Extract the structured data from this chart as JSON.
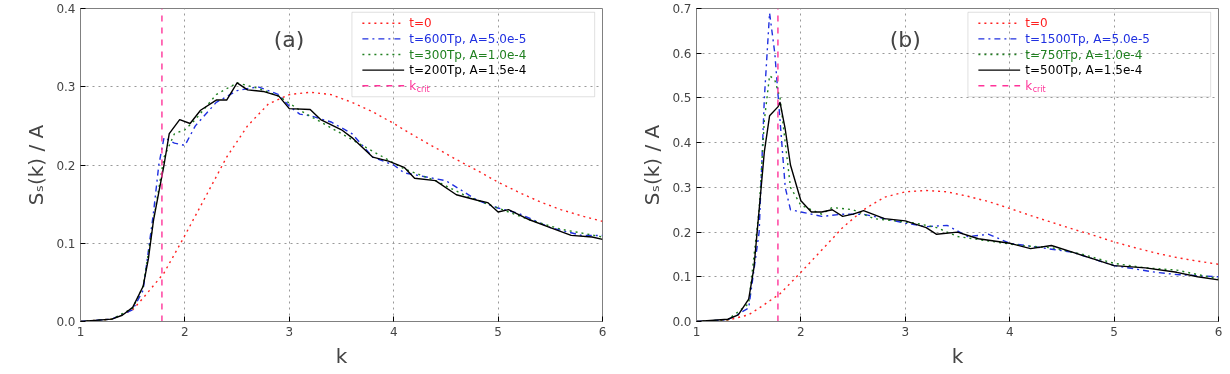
{
  "chart_data": [
    {
      "type": "line",
      "annotations": [
        "(a)"
      ],
      "xlabel": "k",
      "ylabel": "Sₛ(k) / A",
      "xlim": [
        1,
        6
      ],
      "ylim": [
        0,
        0.4
      ],
      "xticks": [
        1,
        2,
        3,
        4,
        5,
        6
      ],
      "yticks": [
        {
          "value": 0,
          "label": "0.0"
        },
        0.1,
        0.2,
        0.3,
        0.4
      ],
      "grid": true,
      "legend": "top right",
      "ref_lines": [
        {
          "axis": "x",
          "value": 1.78,
          "label": "k$_{crit}$",
          "color": "#ff3399",
          "line_style": "dashed"
        }
      ],
      "series": [
        {
          "name": "t=0",
          "color": "#ff2020",
          "line_style": "dotted",
          "x": [
            1.0,
            1.3,
            1.5,
            1.6,
            1.8,
            2.0,
            2.2,
            2.4,
            2.6,
            2.8,
            3.0,
            3.2,
            3.4,
            3.6,
            3.8,
            4.0,
            4.2,
            4.4,
            4.6,
            4.8,
            5.0,
            5.2,
            5.4,
            5.6,
            5.8,
            6.0
          ],
          "values": [
            0,
            0.003,
            0.015,
            0.03,
            0.062,
            0.11,
            0.16,
            0.21,
            0.25,
            0.278,
            0.29,
            0.293,
            0.29,
            0.28,
            0.268,
            0.253,
            0.237,
            0.222,
            0.207,
            0.193,
            0.178,
            0.165,
            0.153,
            0.143,
            0.135,
            0.128
          ]
        },
        {
          "name": "t=600Tp,  A=5.0e-5",
          "color": "#2030e0",
          "line_style": "dashdot",
          "x": [
            1.0,
            1.3,
            1.5,
            1.6,
            1.7,
            1.75,
            1.8,
            1.9,
            2.0,
            2.1,
            2.3,
            2.5,
            2.7,
            2.9,
            3.0,
            3.1,
            3.2,
            3.4,
            3.6,
            3.8,
            4.0,
            4.1,
            4.3,
            4.5,
            4.8,
            5.0,
            5.2,
            5.5,
            5.8,
            6.0
          ],
          "values": [
            0,
            0.003,
            0.015,
            0.04,
            0.14,
            0.2,
            0.235,
            0.228,
            0.225,
            0.25,
            0.28,
            0.295,
            0.3,
            0.29,
            0.275,
            0.265,
            0.263,
            0.255,
            0.24,
            0.21,
            0.2,
            0.19,
            0.185,
            0.18,
            0.155,
            0.145,
            0.138,
            0.12,
            0.11,
            0.11
          ]
        },
        {
          "name": "t=300Tp,  A=1.0e-4",
          "color": "#208020",
          "line_style": "dotted",
          "x": [
            1.0,
            1.3,
            1.5,
            1.6,
            1.7,
            1.8,
            1.9,
            2.0,
            2.1,
            2.3,
            2.5,
            2.7,
            2.9,
            3.1,
            3.3,
            3.5,
            3.7,
            3.9,
            4.1,
            4.4,
            4.7,
            5.0,
            5.3,
            5.6,
            6.0
          ],
          "values": [
            0,
            0.003,
            0.017,
            0.045,
            0.13,
            0.21,
            0.24,
            0.245,
            0.258,
            0.29,
            0.305,
            0.298,
            0.288,
            0.27,
            0.255,
            0.24,
            0.225,
            0.21,
            0.195,
            0.18,
            0.16,
            0.145,
            0.13,
            0.118,
            0.108
          ]
        },
        {
          "name": "t=200Tp,  A=1.5e-4",
          "color": "#000000",
          "line_style": "solid",
          "x": [
            1.0,
            1.3,
            1.4,
            1.5,
            1.6,
            1.65,
            1.7,
            1.75,
            1.8,
            1.85,
            1.95,
            2.05,
            2.15,
            2.3,
            2.4,
            2.5,
            2.6,
            2.75,
            2.9,
            3.0,
            3.2,
            3.3,
            3.5,
            3.6,
            3.8,
            3.95,
            4.1,
            4.2,
            4.4,
            4.6,
            4.8,
            4.9,
            5.0,
            5.1,
            5.3,
            5.5,
            5.7,
            5.9,
            6.0
          ],
          "values": [
            0,
            0.003,
            0.008,
            0.018,
            0.045,
            0.08,
            0.13,
            0.165,
            0.2,
            0.24,
            0.258,
            0.253,
            0.27,
            0.283,
            0.283,
            0.305,
            0.296,
            0.294,
            0.288,
            0.272,
            0.271,
            0.258,
            0.245,
            0.235,
            0.21,
            0.205,
            0.197,
            0.183,
            0.18,
            0.162,
            0.155,
            0.152,
            0.14,
            0.143,
            0.13,
            0.12,
            0.11,
            0.108,
            0.105
          ]
        }
      ]
    },
    {
      "type": "line",
      "annotations": [
        "(b)"
      ],
      "xlabel": "k",
      "ylabel": "Sₛ(k) / A",
      "xlim": [
        1,
        6
      ],
      "ylim": [
        0,
        0.7
      ],
      "xticks": [
        1,
        2,
        3,
        4,
        5,
        6
      ],
      "yticks": [
        {
          "value": 0,
          "label": "0.0"
        },
        0.1,
        0.2,
        0.3,
        0.4,
        0.5,
        0.6,
        0.7
      ],
      "grid": true,
      "legend": "top right",
      "ref_lines": [
        {
          "axis": "x",
          "value": 1.78,
          "label": "k$_{crit}$",
          "color": "#ff3399",
          "line_style": "dashed"
        }
      ],
      "series": [
        {
          "name": "t=0",
          "color": "#ff2020",
          "line_style": "dotted",
          "x": [
            1.0,
            1.3,
            1.5,
            1.6,
            1.8,
            2.0,
            2.2,
            2.4,
            2.6,
            2.8,
            3.0,
            3.2,
            3.4,
            3.6,
            3.8,
            4.0,
            4.2,
            4.4,
            4.6,
            4.8,
            5.0,
            5.2,
            5.4,
            5.6,
            5.8,
            6.0
          ],
          "values": [
            0,
            0.003,
            0.015,
            0.03,
            0.062,
            0.11,
            0.16,
            0.21,
            0.25,
            0.278,
            0.29,
            0.293,
            0.29,
            0.28,
            0.268,
            0.253,
            0.237,
            0.222,
            0.207,
            0.193,
            0.178,
            0.165,
            0.153,
            0.143,
            0.135,
            0.128
          ]
        },
        {
          "name": "t=1500Tp,  A=5.0e-5",
          "color": "#2030e0",
          "line_style": "dashdot",
          "x": [
            1.0,
            1.3,
            1.5,
            1.6,
            1.65,
            1.7,
            1.75,
            1.8,
            1.85,
            1.9,
            2.0,
            2.2,
            2.4,
            2.6,
            2.8,
            3.0,
            3.2,
            3.4,
            3.6,
            3.8,
            4.0,
            4.3,
            4.6,
            5.0,
            5.4,
            5.6,
            6.0
          ],
          "values": [
            0,
            0.004,
            0.03,
            0.2,
            0.5,
            0.69,
            0.6,
            0.45,
            0.3,
            0.25,
            0.245,
            0.235,
            0.24,
            0.24,
            0.23,
            0.22,
            0.212,
            0.215,
            0.19,
            0.195,
            0.175,
            0.165,
            0.155,
            0.125,
            0.11,
            0.105,
            0.1
          ]
        },
        {
          "name": "t=750Tp,  A=1.0e-4",
          "color": "#208020",
          "line_style": "dotted",
          "x": [
            1.0,
            1.3,
            1.5,
            1.6,
            1.65,
            1.7,
            1.75,
            1.8,
            1.85,
            1.9,
            2.0,
            2.2,
            2.3,
            2.5,
            2.7,
            2.9,
            3.1,
            3.3,
            3.5,
            3.8,
            4.1,
            4.4,
            4.7,
            5.0,
            5.3,
            5.6,
            6.0
          ],
          "values": [
            0,
            0.004,
            0.04,
            0.25,
            0.45,
            0.55,
            0.54,
            0.5,
            0.4,
            0.3,
            0.26,
            0.24,
            0.255,
            0.25,
            0.23,
            0.225,
            0.22,
            0.21,
            0.19,
            0.18,
            0.17,
            0.165,
            0.15,
            0.13,
            0.12,
            0.115,
            0.095
          ]
        },
        {
          "name": "t=500Tp,  A=1.5e-4",
          "color": "#000000",
          "line_style": "solid",
          "x": [
            1.0,
            1.3,
            1.4,
            1.5,
            1.55,
            1.6,
            1.65,
            1.7,
            1.78,
            1.8,
            1.85,
            1.9,
            2.0,
            2.1,
            2.2,
            2.3,
            2.4,
            2.5,
            2.6,
            2.8,
            3.0,
            3.2,
            3.3,
            3.5,
            3.7,
            4.0,
            4.2,
            4.4,
            4.6,
            4.8,
            5.0,
            5.3,
            5.6,
            5.8,
            6.0
          ],
          "values": [
            0,
            0.005,
            0.015,
            0.05,
            0.12,
            0.25,
            0.38,
            0.46,
            0.48,
            0.49,
            0.43,
            0.35,
            0.27,
            0.245,
            0.245,
            0.25,
            0.235,
            0.24,
            0.248,
            0.23,
            0.225,
            0.21,
            0.195,
            0.2,
            0.185,
            0.175,
            0.163,
            0.17,
            0.155,
            0.14,
            0.125,
            0.12,
            0.11,
            0.1,
            0.093
          ]
        }
      ]
    }
  ]
}
